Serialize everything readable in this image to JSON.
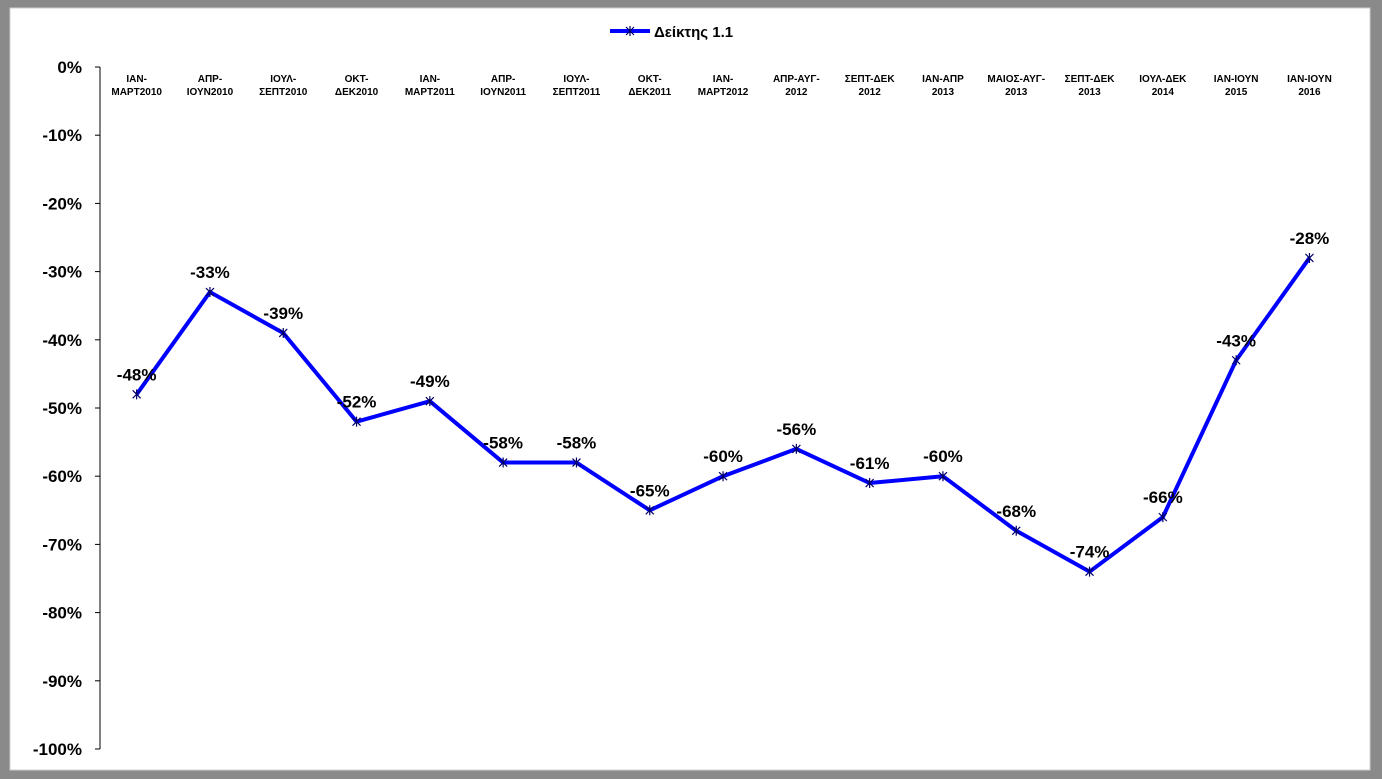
{
  "chart_data": {
    "type": "line",
    "categories": [
      "ΙΑΝ-\nΜΑΡΤ2010",
      "ΑΠΡ-\nΙΟΥΝ2010",
      "ΙΟΥΛ-\nΣΕΠΤ2010",
      "ΟΚΤ-\nΔΕΚ2010",
      "ΙΑΝ-\nΜΑΡΤ2011",
      "ΑΠΡ-\nΙΟΥΝ2011",
      "ΙΟΥΛ-\nΣΕΠΤ2011",
      "ΟΚΤ-\nΔΕΚ2011",
      "ΙΑΝ-\nΜΑΡΤ2012",
      "ΑΠΡ-ΑΥΓ-\n2012",
      "ΣΕΠΤ-ΔΕΚ\n2012",
      "ΙΑΝ-ΑΠΡ\n2013",
      "ΜΑΙΟΣ-ΑΥΓ-\n2013",
      "ΣΕΠΤ-ΔΕΚ\n2013",
      "ΙΟΥΛ-ΔΕΚ\n2014",
      "ΙΑΝ-ΙΟΥΝ\n2015",
      "ΙΑΝ-ΙΟΥΝ\n2016"
    ],
    "series": [
      {
        "name": "Δείκτης 1.1",
        "color": "#0000ff",
        "values": [
          -48,
          -33,
          -39,
          -52,
          -49,
          -58,
          -58,
          -65,
          -60,
          -56,
          -61,
          -60,
          -68,
          -74,
          -66,
          -43,
          -28
        ],
        "value_labels": [
          "-48%",
          "-33%",
          "-39%",
          "-52%",
          "-49%",
          "-58%",
          "-58%",
          "-65%",
          "-60%",
          "-56%",
          "-61%",
          "-60%",
          "-68%",
          "-74%",
          "-66%",
          "-43%",
          "-28%"
        ]
      }
    ],
    "ylim": [
      -100,
      0
    ],
    "yticks": [
      {
        "value": 0,
        "label": "0%"
      },
      {
        "value": -10,
        "label": "-10%"
      },
      {
        "value": -20,
        "label": "-20%"
      },
      {
        "value": -30,
        "label": "-30%"
      },
      {
        "value": -40,
        "label": "-40%"
      },
      {
        "value": -50,
        "label": "-50%"
      },
      {
        "value": -60,
        "label": "-60%"
      },
      {
        "value": -70,
        "label": "-70%"
      },
      {
        "value": -80,
        "label": "-80%"
      },
      {
        "value": -90,
        "label": "-90%"
      },
      {
        "value": -100,
        "label": "-100%"
      }
    ],
    "legend": "top",
    "grid": false
  }
}
